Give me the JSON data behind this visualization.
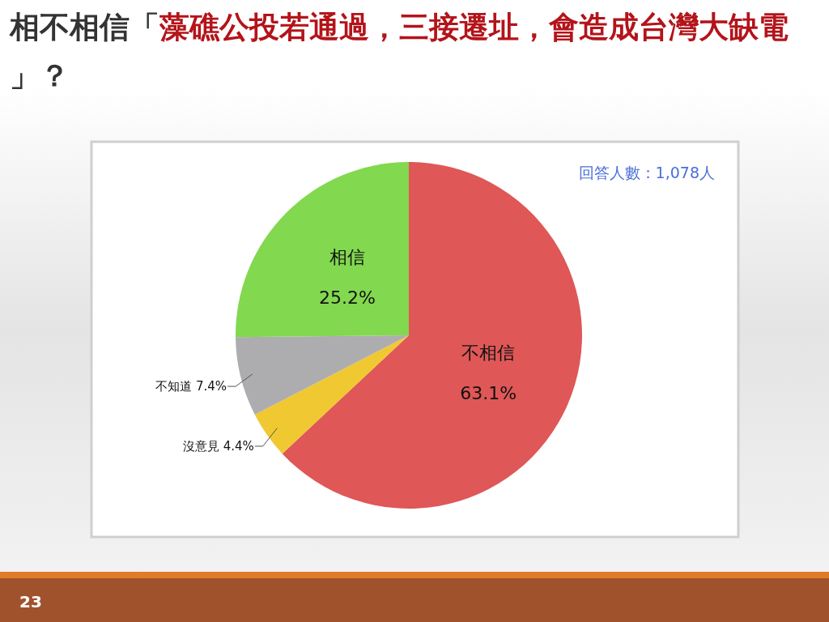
{
  "chart_data": {
    "type": "pie",
    "title": "相不相信「藻礁公投若通過，三接遷址，會造成台灣大缺電」？",
    "categories": [
      "不相信",
      "沒意見",
      "不知道",
      "相信"
    ],
    "values": [
      63.1,
      4.4,
      7.4,
      25.2
    ],
    "value_labels": [
      "63.1%",
      "4.4%",
      "7.4%",
      "25.2%"
    ],
    "colors": [
      "#df5757",
      "#f0c832",
      "#adadaf",
      "#82d84f"
    ],
    "annotations": [
      "回答人數：1,078人",
      "23"
    ]
  }
}
